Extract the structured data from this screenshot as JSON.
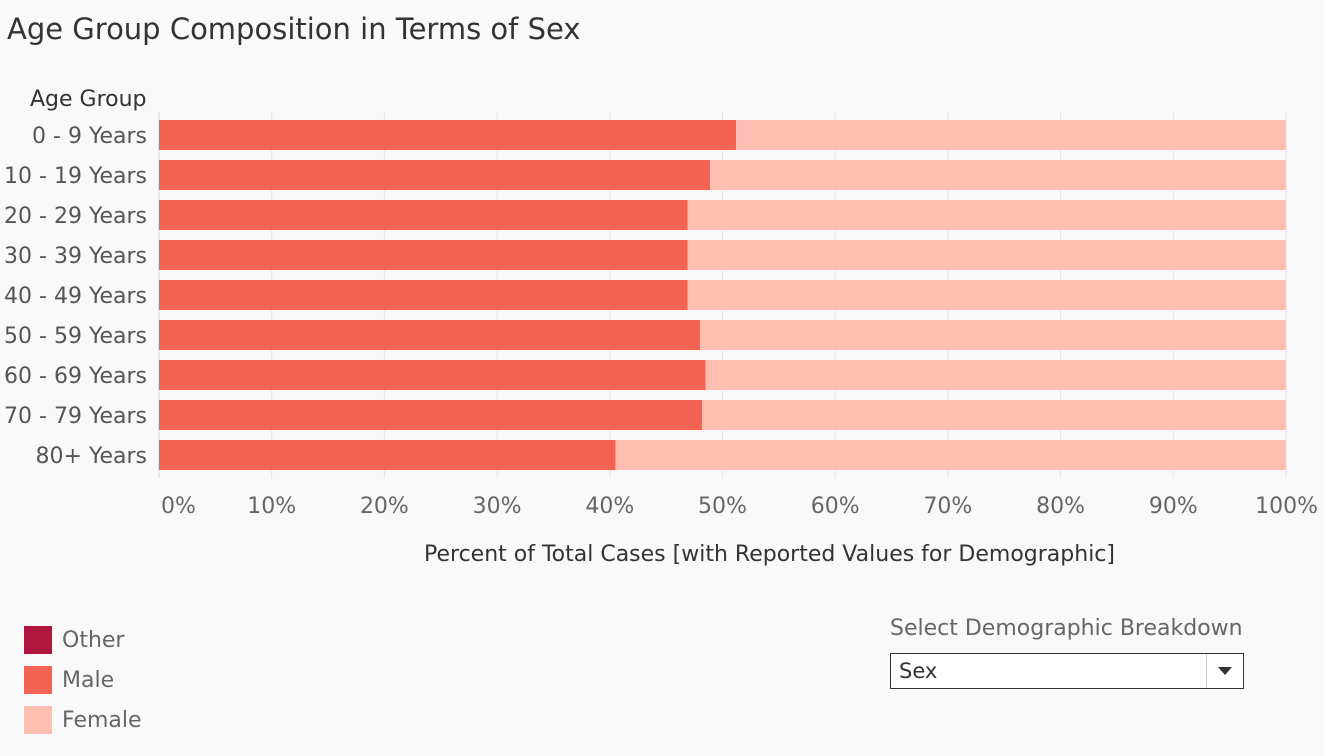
{
  "chart_data": {
    "type": "bar",
    "orientation": "horizontal",
    "stacked": true,
    "title": "Age Group Composition in Terms of Sex",
    "ytitle": "Age Group",
    "xlabel": "Percent of Total Cases [with Reported Values for Demographic]",
    "categories": [
      "0 - 9 Years",
      "10 - 19 Years",
      "20 - 29 Years",
      "30 - 39 Years",
      "40 - 49 Years",
      "50 - 59 Years",
      "60 - 69 Years",
      "70 - 79 Years",
      "80+ Years"
    ],
    "series": [
      {
        "name": "Other",
        "color": "#b0173f",
        "values": [
          0,
          0,
          0,
          0,
          0,
          0,
          0,
          0,
          0
        ]
      },
      {
        "name": "Male",
        "color": "#f26352",
        "values": [
          51.2,
          48.9,
          46.9,
          46.9,
          46.9,
          48.0,
          48.5,
          48.2,
          40.5
        ]
      },
      {
        "name": "Female",
        "color": "#ffbeb2",
        "values": [
          48.8,
          51.1,
          53.1,
          53.1,
          53.1,
          52.0,
          51.5,
          51.8,
          59.5
        ]
      }
    ],
    "xlim": [
      0,
      100
    ],
    "xticks": [
      "0%",
      "10%",
      "20%",
      "30%",
      "40%",
      "50%",
      "60%",
      "70%",
      "80%",
      "90%",
      "100%"
    ],
    "grid": true,
    "legend_position": "bottom-left"
  },
  "legend": {
    "items": [
      {
        "label": "Other",
        "color": "#b0173f"
      },
      {
        "label": "Male",
        "color": "#f26352"
      },
      {
        "label": "Female",
        "color": "#ffbeb2"
      }
    ]
  },
  "selector": {
    "label": "Select Demographic Breakdown",
    "value": "Sex"
  }
}
